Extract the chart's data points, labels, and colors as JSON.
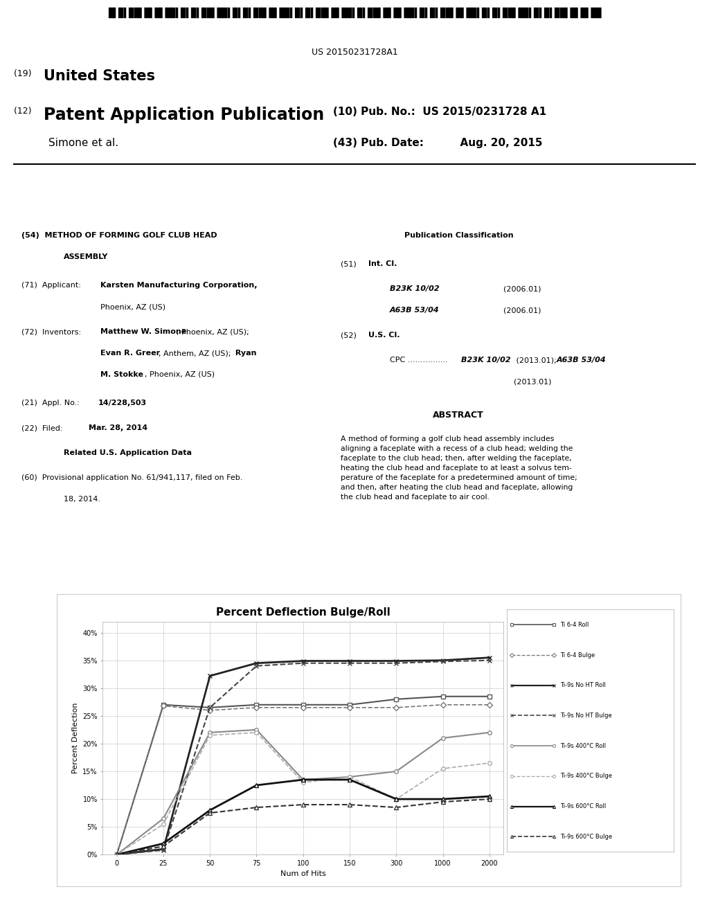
{
  "title": "Percent Deflection Bulge/Roll",
  "xlabel": "Num of Hits",
  "ylabel": "Percent Deflection",
  "x_positions": [
    0,
    25,
    50,
    75,
    100,
    150,
    300,
    1000,
    2000
  ],
  "x_labels": [
    "0",
    "25",
    "50",
    "75",
    "100",
    "150",
    "300",
    "1000",
    "2000"
  ],
  "ylim": [
    0,
    0.42
  ],
  "yticks": [
    0,
    0.05,
    0.1,
    0.15,
    0.2,
    0.25,
    0.3,
    0.35,
    0.4
  ],
  "ytick_labels": [
    "0%",
    "5%",
    "10%",
    "15%",
    "20%",
    "25%",
    "30%",
    "35%",
    "40%"
  ],
  "series": [
    {
      "label": "Ti 6-4 Roll",
      "color": "#555555",
      "linestyle": "-",
      "marker": "s",
      "linewidth": 1.5,
      "data_y": [
        0,
        0.27,
        0.265,
        0.27,
        0.27,
        0.27,
        0.28,
        0.285,
        0.285
      ]
    },
    {
      "label": "Ti 6-4 Bulge",
      "color": "#777777",
      "linestyle": "--",
      "marker": "D",
      "linewidth": 1.2,
      "data_y": [
        0,
        0.268,
        0.26,
        0.265,
        0.265,
        0.265,
        0.265,
        0.27,
        0.27
      ]
    },
    {
      "label": "Ti-9s No HT Roll",
      "color": "#222222",
      "linestyle": "-",
      "marker": "x",
      "linewidth": 2.0,
      "data_y": [
        0,
        0.01,
        0.322,
        0.345,
        0.349,
        0.349,
        0.349,
        0.35,
        0.355
      ]
    },
    {
      "label": "Ti-9s No HT Bulge",
      "color": "#444444",
      "linestyle": "--",
      "marker": "x",
      "linewidth": 1.5,
      "data_y": [
        0,
        0.008,
        0.265,
        0.34,
        0.345,
        0.345,
        0.345,
        0.348,
        0.35
      ]
    },
    {
      "label": "Ti-9s 400°C Roll",
      "color": "#888888",
      "linestyle": "-",
      "marker": "o",
      "linewidth": 1.5,
      "data_y": [
        0,
        0.065,
        0.22,
        0.225,
        0.135,
        0.14,
        0.15,
        0.21,
        0.22
      ]
    },
    {
      "label": "Ti-9s 400°C Bulge",
      "color": "#aaaaaa",
      "linestyle": "--",
      "marker": "o",
      "linewidth": 1.2,
      "data_y": [
        0,
        0.055,
        0.215,
        0.22,
        0.13,
        0.14,
        0.1,
        0.155,
        0.165
      ]
    },
    {
      "label": "Ti-9s 600°C Roll",
      "color": "#111111",
      "linestyle": "-",
      "marker": "^",
      "linewidth": 2.0,
      "data_y": [
        0,
        0.02,
        0.08,
        0.125,
        0.135,
        0.135,
        0.1,
        0.1,
        0.105
      ]
    },
    {
      "label": "Ti-9s 600°C Bulge",
      "color": "#333333",
      "linestyle": "--",
      "marker": "^",
      "linewidth": 1.5,
      "data_y": [
        0,
        0.015,
        0.075,
        0.085,
        0.09,
        0.09,
        0.085,
        0.095,
        0.1
      ]
    }
  ],
  "bg_color": "#ffffff"
}
